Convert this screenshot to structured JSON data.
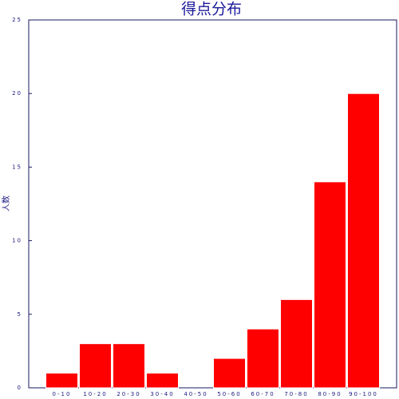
{
  "chart_data": {
    "type": "bar",
    "title": "得点分布",
    "y_label": "人数",
    "categories": [
      "0-10",
      "10-20",
      "20-30",
      "30-40",
      "40-50",
      "50-60",
      "60-70",
      "70-80",
      "80-90",
      "90-100"
    ],
    "values": [
      1,
      3,
      3,
      1,
      0,
      2,
      4,
      6,
      14,
      20
    ],
    "color": "#ff0000",
    "ylim": [
      0,
      25
    ],
    "yticks": [
      0,
      5,
      10,
      15,
      20,
      25
    ],
    "grid": false
  }
}
